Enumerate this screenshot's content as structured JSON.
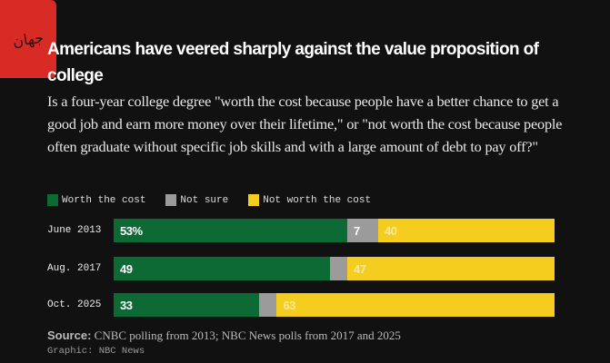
{
  "logo_text": "جهان",
  "title": "Americans have veered sharply against the value proposition of college",
  "subtitle": "Is a four-year college degree \"worth the cost because people have a better chance to get a good job and earn more money over their lifetime,\" or \"not worth the cost because people often graduate without specific job skills and with a large amount of debt to pay off?\"",
  "chart_data": {
    "type": "bar",
    "orientation": "horizontal-stacked",
    "categories": [
      "June 2013",
      "Aug. 2017",
      "Oct. 2025"
    ],
    "series": [
      {
        "name": "Worth the cost",
        "color": "#0e6a35",
        "values": [
          53,
          49,
          33
        ],
        "labels": [
          "53%",
          "49",
          "33"
        ]
      },
      {
        "name": "Not sure",
        "color": "#9b9b9b",
        "values": [
          7,
          4,
          4
        ],
        "labels": [
          "7",
          "",
          ""
        ]
      },
      {
        "name": "Not worth the cost",
        "color": "#f4cd1e",
        "values": [
          40,
          47,
          63
        ],
        "labels": [
          "40",
          "47",
          "63"
        ]
      }
    ],
    "xlim": [
      0,
      100
    ],
    "legend": "top-left"
  },
  "source_label": "Source:",
  "source_text": " CNBC polling from 2013; NBC News polls from 2017 and 2025",
  "credit": "Graphic: NBC News"
}
